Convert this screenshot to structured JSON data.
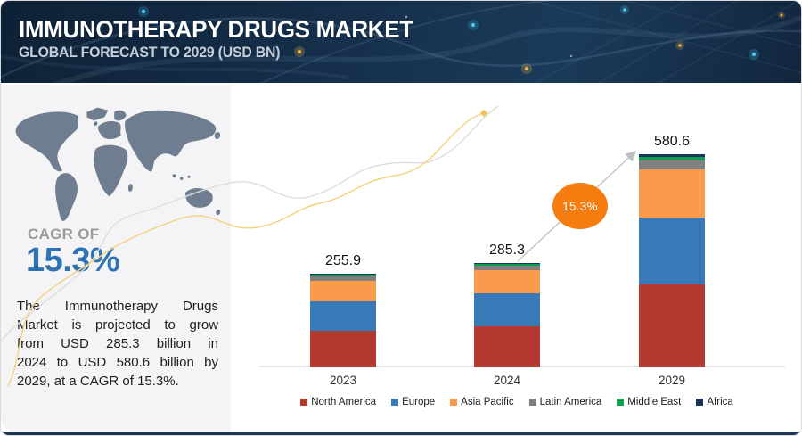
{
  "header": {
    "title": "IMMUNOTHERAPY DRUGS MARKET",
    "subtitle": "GLOBAL FORECAST TO 2029 (USD BN)"
  },
  "sidebar": {
    "cagr_label": "CAGR OF",
    "cagr_value": "15.3%",
    "description": "The Immunotherapy Drugs Market is projected to grow from USD 285.3 billion in 2024 to USD 580.6 billion by 2029, at a CAGR of 15.3%.",
    "description_lines": [
      "The Immunotherapy Drugs",
      "Market is projected to grow",
      "from USD 285.3 billion in",
      "2024 to USD 580.6 billion by",
      "2029, at a CAGR of 15.3%."
    ]
  },
  "chart_data": {
    "type": "bar",
    "stacked": true,
    "title": "Immunotherapy Drugs Market, Global Forecast (USD BN)",
    "categories": [
      "2023",
      "2024",
      "2029"
    ],
    "totals": [
      255.9,
      285.3,
      580.6
    ],
    "value_labels": [
      "255.9",
      "285.3",
      "580.6"
    ],
    "series": [
      {
        "name": "North America",
        "color": "#b43a31",
        "values": [
          100.0,
          111.5,
          227.1
        ]
      },
      {
        "name": "Europe",
        "color": "#3a79b7",
        "values": [
          80.0,
          89.5,
          180.0
        ]
      },
      {
        "name": "Asia Pacific",
        "color": "#fa9a4d",
        "values": [
          57.0,
          63.5,
          133.0
        ]
      },
      {
        "name": "Latin America",
        "color": "#808080",
        "values": [
          11.0,
          12.3,
          25.0
        ]
      },
      {
        "name": "Middle East",
        "color": "#0d9f4e",
        "values": [
          5.0,
          5.5,
          8.5
        ]
      },
      {
        "name": "Africa",
        "color": "#17355e",
        "values": [
          2.9,
          3.0,
          7.0
        ]
      }
    ],
    "annotation": {
      "growth_label": "15.3%"
    },
    "xlabel": "",
    "ylabel": "",
    "ylim": [
      0,
      600
    ],
    "grid": false,
    "legend_position": "bottom"
  }
}
